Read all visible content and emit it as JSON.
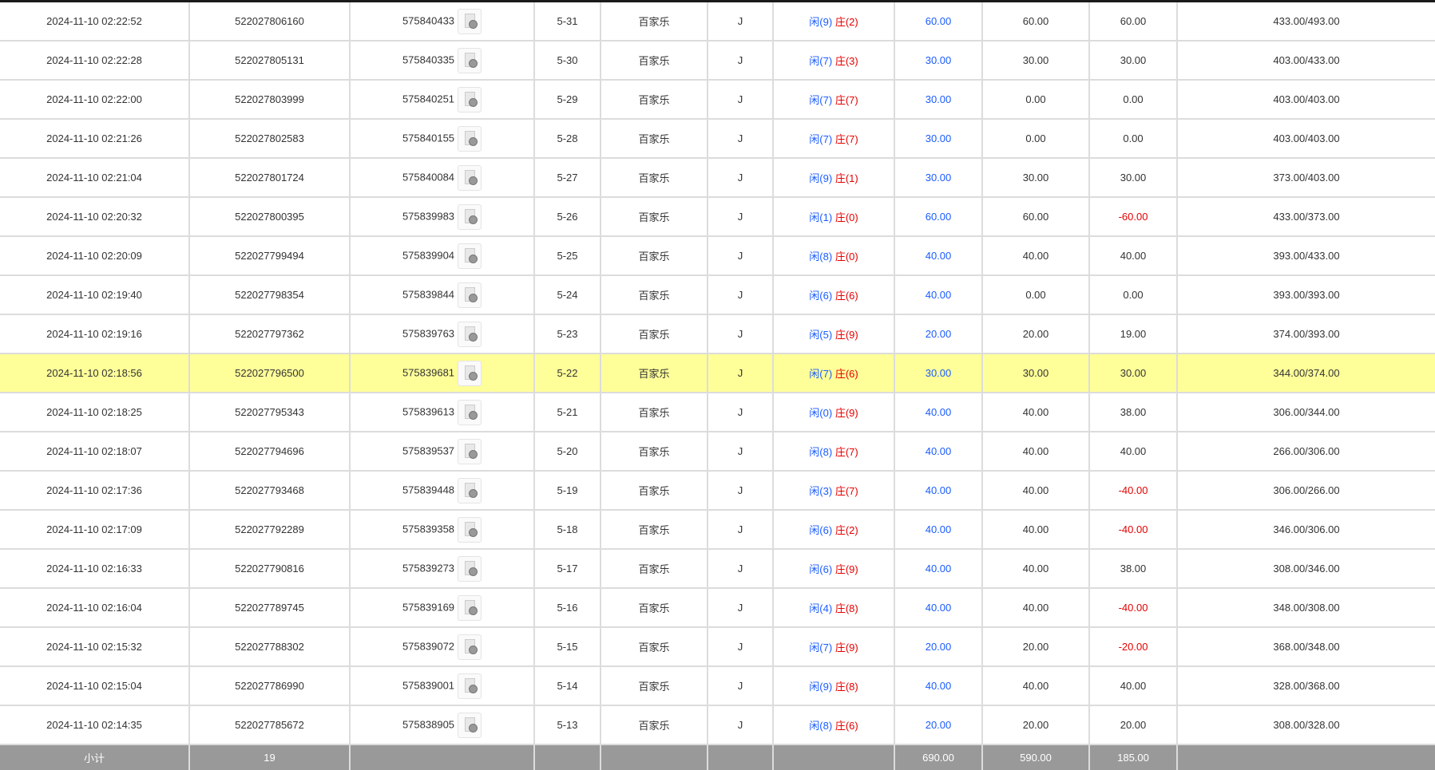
{
  "rows": [
    {
      "time": "2024-11-10 02:22:52",
      "order": "522027806160",
      "round": "575840433",
      "shoe": "5-31",
      "game": "百家乐",
      "table": "J",
      "player": "闲(9)",
      "banker": "庄(2)",
      "bet": "60.00",
      "valid": "60.00",
      "win": "60.00",
      "balance": "433.00/493.00"
    },
    {
      "time": "2024-11-10 02:22:28",
      "order": "522027805131",
      "round": "575840335",
      "shoe": "5-30",
      "game": "百家乐",
      "table": "J",
      "player": "闲(7)",
      "banker": "庄(3)",
      "bet": "30.00",
      "valid": "30.00",
      "win": "30.00",
      "balance": "403.00/433.00"
    },
    {
      "time": "2024-11-10 02:22:00",
      "order": "522027803999",
      "round": "575840251",
      "shoe": "5-29",
      "game": "百家乐",
      "table": "J",
      "player": "闲(7)",
      "banker": "庄(7)",
      "bet": "30.00",
      "valid": "0.00",
      "win": "0.00",
      "balance": "403.00/403.00"
    },
    {
      "time": "2024-11-10 02:21:26",
      "order": "522027802583",
      "round": "575840155",
      "shoe": "5-28",
      "game": "百家乐",
      "table": "J",
      "player": "闲(7)",
      "banker": "庄(7)",
      "bet": "30.00",
      "valid": "0.00",
      "win": "0.00",
      "balance": "403.00/403.00"
    },
    {
      "time": "2024-11-10 02:21:04",
      "order": "522027801724",
      "round": "575840084",
      "shoe": "5-27",
      "game": "百家乐",
      "table": "J",
      "player": "闲(9)",
      "banker": "庄(1)",
      "bet": "30.00",
      "valid": "30.00",
      "win": "30.00",
      "balance": "373.00/403.00"
    },
    {
      "time": "2024-11-10 02:20:32",
      "order": "522027800395",
      "round": "575839983",
      "shoe": "5-26",
      "game": "百家乐",
      "table": "J",
      "player": "闲(1)",
      "banker": "庄(0)",
      "bet": "60.00",
      "valid": "60.00",
      "win": "-60.00",
      "balance": "433.00/373.00"
    },
    {
      "time": "2024-11-10 02:20:09",
      "order": "522027799494",
      "round": "575839904",
      "shoe": "5-25",
      "game": "百家乐",
      "table": "J",
      "player": "闲(8)",
      "banker": "庄(0)",
      "bet": "40.00",
      "valid": "40.00",
      "win": "40.00",
      "balance": "393.00/433.00"
    },
    {
      "time": "2024-11-10 02:19:40",
      "order": "522027798354",
      "round": "575839844",
      "shoe": "5-24",
      "game": "百家乐",
      "table": "J",
      "player": "闲(6)",
      "banker": "庄(6)",
      "bet": "40.00",
      "valid": "0.00",
      "win": "0.00",
      "balance": "393.00/393.00"
    },
    {
      "time": "2024-11-10 02:19:16",
      "order": "522027797362",
      "round": "575839763",
      "shoe": "5-23",
      "game": "百家乐",
      "table": "J",
      "player": "闲(5)",
      "banker": "庄(9)",
      "bet": "20.00",
      "valid": "20.00",
      "win": "19.00",
      "balance": "374.00/393.00"
    },
    {
      "time": "2024-11-10 02:18:56",
      "order": "522027796500",
      "round": "575839681",
      "shoe": "5-22",
      "game": "百家乐",
      "table": "J",
      "player": "闲(7)",
      "banker": "庄(6)",
      "bet": "30.00",
      "valid": "30.00",
      "win": "30.00",
      "balance": "344.00/374.00",
      "highlight": true
    },
    {
      "time": "2024-11-10 02:18:25",
      "order": "522027795343",
      "round": "575839613",
      "shoe": "5-21",
      "game": "百家乐",
      "table": "J",
      "player": "闲(0)",
      "banker": "庄(9)",
      "bet": "40.00",
      "valid": "40.00",
      "win": "38.00",
      "balance": "306.00/344.00"
    },
    {
      "time": "2024-11-10 02:18:07",
      "order": "522027794696",
      "round": "575839537",
      "shoe": "5-20",
      "game": "百家乐",
      "table": "J",
      "player": "闲(8)",
      "banker": "庄(7)",
      "bet": "40.00",
      "valid": "40.00",
      "win": "40.00",
      "balance": "266.00/306.00"
    },
    {
      "time": "2024-11-10 02:17:36",
      "order": "522027793468",
      "round": "575839448",
      "shoe": "5-19",
      "game": "百家乐",
      "table": "J",
      "player": "闲(3)",
      "banker": "庄(7)",
      "bet": "40.00",
      "valid": "40.00",
      "win": "-40.00",
      "balance": "306.00/266.00"
    },
    {
      "time": "2024-11-10 02:17:09",
      "order": "522027792289",
      "round": "575839358",
      "shoe": "5-18",
      "game": "百家乐",
      "table": "J",
      "player": "闲(6)",
      "banker": "庄(2)",
      "bet": "40.00",
      "valid": "40.00",
      "win": "-40.00",
      "balance": "346.00/306.00"
    },
    {
      "time": "2024-11-10 02:16:33",
      "order": "522027790816",
      "round": "575839273",
      "shoe": "5-17",
      "game": "百家乐",
      "table": "J",
      "player": "闲(6)",
      "banker": "庄(9)",
      "bet": "40.00",
      "valid": "40.00",
      "win": "38.00",
      "balance": "308.00/346.00"
    },
    {
      "time": "2024-11-10 02:16:04",
      "order": "522027789745",
      "round": "575839169",
      "shoe": "5-16",
      "game": "百家乐",
      "table": "J",
      "player": "闲(4)",
      "banker": "庄(8)",
      "bet": "40.00",
      "valid": "40.00",
      "win": "-40.00",
      "balance": "348.00/308.00"
    },
    {
      "time": "2024-11-10 02:15:32",
      "order": "522027788302",
      "round": "575839072",
      "shoe": "5-15",
      "game": "百家乐",
      "table": "J",
      "player": "闲(7)",
      "banker": "庄(9)",
      "bet": "20.00",
      "valid": "20.00",
      "win": "-20.00",
      "balance": "368.00/348.00"
    },
    {
      "time": "2024-11-10 02:15:04",
      "order": "522027786990",
      "round": "575839001",
      "shoe": "5-14",
      "game": "百家乐",
      "table": "J",
      "player": "闲(9)",
      "banker": "庄(8)",
      "bet": "40.00",
      "valid": "40.00",
      "win": "40.00",
      "balance": "328.00/368.00"
    },
    {
      "time": "2024-11-10 02:14:35",
      "order": "522027785672",
      "round": "575838905",
      "shoe": "5-13",
      "game": "百家乐",
      "table": "J",
      "player": "闲(8)",
      "banker": "庄(6)",
      "bet": "20.00",
      "valid": "20.00",
      "win": "20.00",
      "balance": "308.00/328.00"
    }
  ],
  "subtotal": {
    "label": "小计",
    "count": "19",
    "bet": "690.00",
    "valid": "590.00",
    "win": "185.00"
  },
  "colors": {
    "player": "#1a5cff",
    "banker": "#e60000",
    "negative": "#e60000",
    "highlight": "#ffff99",
    "subtotal_bg": "#999999"
  },
  "icons": {
    "round_detail": "video-document-icon"
  }
}
